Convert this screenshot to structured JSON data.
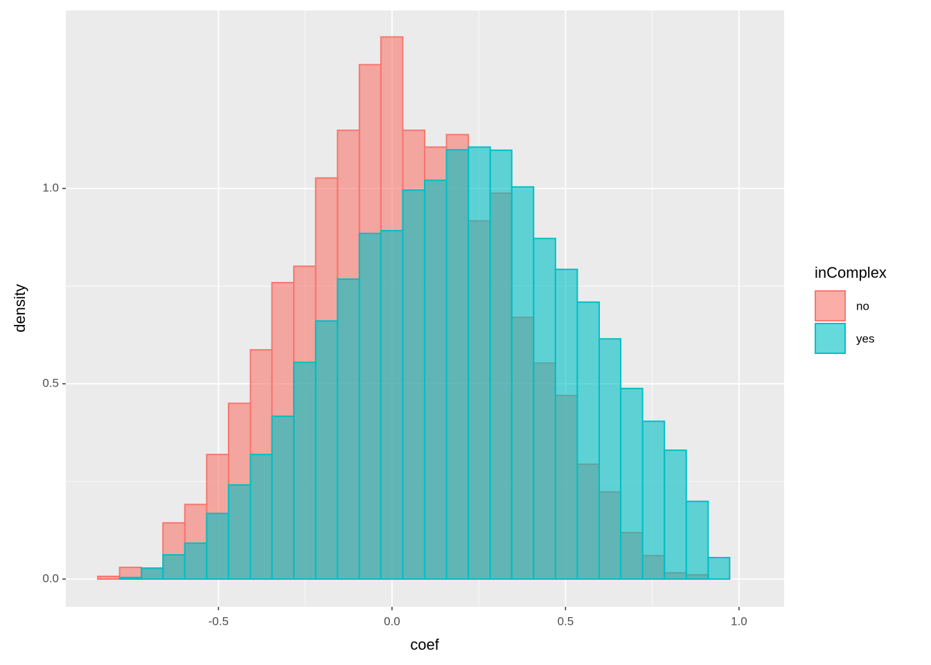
{
  "chart_data": {
    "type": "histogram",
    "x_label": "coef",
    "y_label": "density",
    "legend_title": "inComplex",
    "legend_position": "right",
    "bins": [
      -0.848,
      -0.785,
      -0.722,
      -0.66,
      -0.597,
      -0.534,
      -0.471,
      -0.408,
      -0.346,
      -0.283,
      -0.22,
      -0.157,
      -0.094,
      -0.032,
      0.031,
      0.094,
      0.157,
      0.22,
      0.283,
      0.345,
      0.408,
      0.471,
      0.534,
      0.597,
      0.659,
      0.722,
      0.785,
      0.848,
      0.911,
      0.973,
      1.036
    ],
    "series": [
      {
        "name": "no",
        "color": "#F8766D",
        "values": [
          0.007,
          0.03,
          0.028,
          0.144,
          0.191,
          0.319,
          0.45,
          0.587,
          0.759,
          0.801,
          1.027,
          1.149,
          1.317,
          1.388,
          1.149,
          1.106,
          1.138,
          0.917,
          0.988,
          0.67,
          0.553,
          0.47,
          0.294,
          0.223,
          0.119,
          0.06,
          0.016,
          0.011,
          0,
          0
        ]
      },
      {
        "name": "yes",
        "color": "#00BFC4",
        "values": [
          0,
          0.004,
          0.028,
          0.062,
          0.092,
          0.168,
          0.241,
          0.319,
          0.417,
          0.555,
          0.661,
          0.768,
          0.885,
          0.892,
          0.996,
          1.021,
          1.099,
          1.106,
          1.098,
          1.004,
          0.872,
          0.793,
          0.709,
          0.615,
          0.488,
          0.404,
          0.33,
          0.199,
          0.055,
          0
        ]
      }
    ],
    "xlim": [
      -0.94,
      1.13
    ],
    "ylim": [
      -0.071,
      1.456
    ],
    "xticks": [
      {
        "value": -0.5,
        "label": "-0.5"
      },
      {
        "value": 0,
        "label": "0.0"
      },
      {
        "value": 0.5,
        "label": "0.5"
      },
      {
        "value": 1,
        "label": "1.0"
      }
    ],
    "yticks": [
      {
        "value": 0,
        "label": "0.0"
      },
      {
        "value": 0.5,
        "label": "0.5"
      },
      {
        "value": 1,
        "label": "1.0"
      }
    ],
    "grid": true
  }
}
